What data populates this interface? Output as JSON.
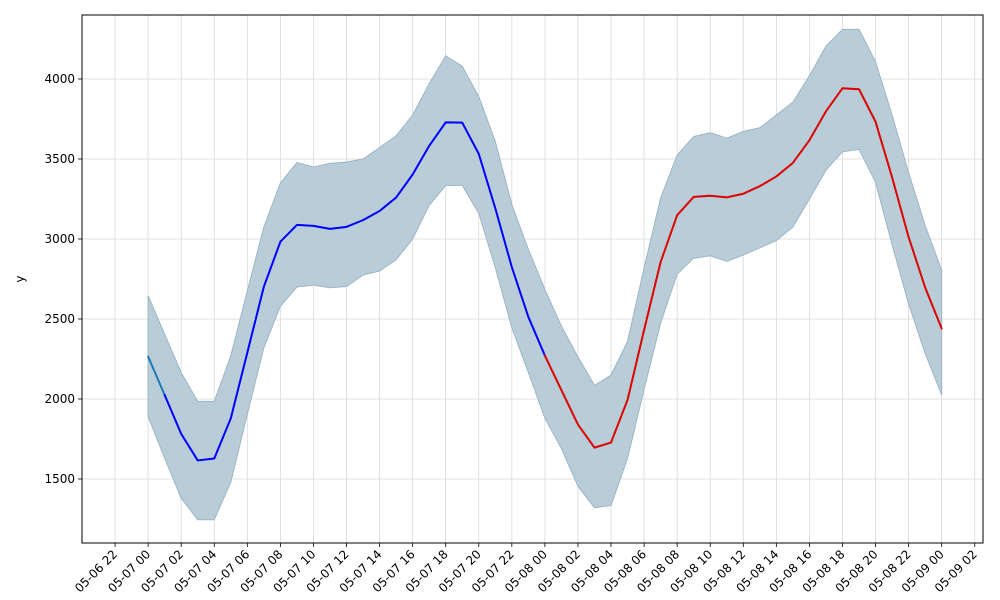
{
  "chart_data": {
    "type": "line",
    "title": "",
    "xlabel": "",
    "ylabel": "y",
    "grid": true,
    "legend": "none",
    "x_ticks": [
      "05-06 22",
      "05-07 00",
      "05-07 02",
      "05-07 04",
      "05-07 06",
      "05-07 08",
      "05-07 10",
      "05-07 12",
      "05-07 14",
      "05-07 16",
      "05-07 18",
      "05-07 20",
      "05-07 22",
      "05-08 00",
      "05-08 02",
      "05-08 04",
      "05-08 06",
      "05-08 08",
      "05-08 10",
      "05-08 12",
      "05-08 14",
      "05-08 16",
      "05-08 18",
      "05-08 20",
      "05-08 22",
      "05-09 00",
      "05-09 02"
    ],
    "y_ticks": [
      1500,
      2000,
      2500,
      3000,
      3500,
      4000
    ],
    "ylim": [
      1100,
      4400
    ],
    "xlim": [
      "2024-05-06 20:00",
      "2024-05-09 02:30"
    ],
    "colors": {
      "band_fill": "#b9cdd9",
      "band_edge": "#9db5c6",
      "history": "#1f77b4",
      "fit": "#0000ff",
      "forecast": "#dd0000",
      "grid": "#d9d9d9"
    },
    "series": [
      {
        "role": "history",
        "x": [
          "2024-05-07 00:00",
          "2024-05-07 01:00"
        ],
        "values": [
          2265,
          2025
        ]
      },
      {
        "role": "fit",
        "x": [
          "2024-05-07 01:00",
          "2024-05-07 02:00",
          "2024-05-07 03:00",
          "2024-05-07 04:00",
          "2024-05-07 05:00",
          "2024-05-07 06:00",
          "2024-05-07 07:00",
          "2024-05-07 08:00",
          "2024-05-07 09:00",
          "2024-05-07 10:00",
          "2024-05-07 11:00",
          "2024-05-07 12:00",
          "2024-05-07 13:00",
          "2024-05-07 14:00",
          "2024-05-07 15:00",
          "2024-05-07 16:00",
          "2024-05-07 17:00",
          "2024-05-07 18:00",
          "2024-05-07 19:00",
          "2024-05-07 20:00",
          "2024-05-07 21:00",
          "2024-05-07 22:00",
          "2024-05-07 23:00",
          "2024-05-08 00:00"
        ],
        "values": [
          2025,
          1782,
          1616,
          1628,
          1879,
          2290,
          2702,
          2983,
          3088,
          3082,
          3063,
          3076,
          3118,
          3175,
          3259,
          3403,
          3582,
          3729,
          3727,
          3532,
          3192,
          2824,
          2513,
          2271
        ]
      },
      {
        "role": "forecast",
        "x": [
          "2024-05-08 00:00",
          "2024-05-08 01:00",
          "2024-05-08 02:00",
          "2024-05-08 03:00",
          "2024-05-08 04:00",
          "2024-05-08 05:00",
          "2024-05-08 06:00",
          "2024-05-08 07:00",
          "2024-05-08 08:00",
          "2024-05-08 09:00",
          "2024-05-08 10:00",
          "2024-05-08 11:00",
          "2024-05-08 12:00",
          "2024-05-08 13:00",
          "2024-05-08 14:00",
          "2024-05-08 15:00",
          "2024-05-08 16:00",
          "2024-05-08 17:00",
          "2024-05-08 18:00",
          "2024-05-08 19:00",
          "2024-05-08 20:00",
          "2024-05-08 21:00",
          "2024-05-08 22:00",
          "2024-05-08 23:00",
          "2024-05-09 00:00"
        ],
        "values": [
          2271,
          2055,
          1840,
          1696,
          1728,
          1995,
          2431,
          2856,
          3149,
          3263,
          3270,
          3260,
          3283,
          3330,
          3391,
          3476,
          3617,
          3798,
          3942,
          3936,
          3733,
          3386,
          3012,
          2697,
          2441
        ]
      },
      {
        "role": "interval",
        "x": [
          "2024-05-07 00:00",
          "2024-05-07 01:00",
          "2024-05-07 02:00",
          "2024-05-07 03:00",
          "2024-05-07 04:00",
          "2024-05-07 05:00",
          "2024-05-07 06:00",
          "2024-05-07 07:00",
          "2024-05-07 08:00",
          "2024-05-07 09:00",
          "2024-05-07 10:00",
          "2024-05-07 11:00",
          "2024-05-07 12:00",
          "2024-05-07 13:00",
          "2024-05-07 14:00",
          "2024-05-07 15:00",
          "2024-05-07 16:00",
          "2024-05-07 17:00",
          "2024-05-07 18:00",
          "2024-05-07 19:00",
          "2024-05-07 20:00",
          "2024-05-07 21:00",
          "2024-05-07 22:00",
          "2024-05-07 23:00",
          "2024-05-08 00:00",
          "2024-05-08 01:00",
          "2024-05-08 02:00",
          "2024-05-08 03:00",
          "2024-05-08 04:00",
          "2024-05-08 05:00",
          "2024-05-08 06:00",
          "2024-05-08 07:00",
          "2024-05-08 08:00",
          "2024-05-08 09:00",
          "2024-05-08 10:00",
          "2024-05-08 11:00",
          "2024-05-08 12:00",
          "2024-05-08 13:00",
          "2024-05-08 14:00",
          "2024-05-08 15:00",
          "2024-05-08 16:00",
          "2024-05-08 17:00",
          "2024-05-08 18:00",
          "2024-05-08 19:00",
          "2024-05-08 20:00",
          "2024-05-08 21:00",
          "2024-05-08 22:00",
          "2024-05-08 23:00",
          "2024-05-09 00:00"
        ],
        "upper": [
          2645,
          2405,
          2165,
          1985,
          1985,
          2270,
          2675,
          3075,
          3350,
          3478,
          3450,
          3473,
          3481,
          3500,
          3572,
          3645,
          3775,
          3970,
          4145,
          4080,
          3890,
          3610,
          3215,
          2935,
          2685,
          2455,
          2263,
          2085,
          2150,
          2360,
          2820,
          3255,
          3525,
          3640,
          3665,
          3630,
          3672,
          3695,
          3775,
          3855,
          4020,
          4205,
          4310,
          4310,
          4108,
          3775,
          3415,
          3085,
          2805
        ],
        "lower": [
          1890,
          1630,
          1380,
          1245,
          1245,
          1480,
          1905,
          2320,
          2580,
          2700,
          2712,
          2695,
          2703,
          2775,
          2800,
          2870,
          3000,
          3210,
          3335,
          3335,
          3160,
          2820,
          2445,
          2165,
          1880,
          1690,
          1455,
          1320,
          1335,
          1630,
          2060,
          2475,
          2780,
          2880,
          2895,
          2860,
          2900,
          2945,
          2990,
          3075,
          3250,
          3430,
          3545,
          3560,
          3355,
          2965,
          2595,
          2285,
          2025
        ]
      }
    ]
  }
}
